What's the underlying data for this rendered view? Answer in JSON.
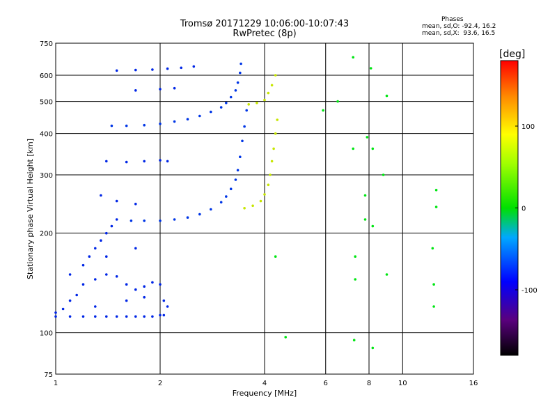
{
  "header": {
    "title": "Tromsø 20171229 10:06:00-10:07:43",
    "subtitle": "RwPretec (8p)"
  },
  "phases": {
    "label": "Phases",
    "line1": "mean, sd,O: -92.4, 16.2",
    "line2": "mean, sd,X:  93.6, 16.5"
  },
  "colorbar": {
    "label": "[deg]",
    "ticks": [
      {
        "value": 100,
        "label": "100"
      },
      {
        "value": 0,
        "label": "0"
      },
      {
        "value": -100,
        "label": "-100"
      }
    ],
    "range": [
      -180,
      180
    ]
  },
  "chart_data": {
    "type": "scatter",
    "title": "",
    "xlabel": "Frequency [MHz]",
    "ylabel": "Stationary phase Virtual Height [km]",
    "xscale": "log",
    "yscale": "log",
    "xlim": [
      1,
      16
    ],
    "ylim": [
      75,
      750
    ],
    "xticks": [
      1,
      2,
      4,
      6,
      8,
      10,
      16
    ],
    "xtick_labels": [
      "1",
      "2",
      "4",
      "6",
      "8",
      "10",
      "16"
    ],
    "yticks": [
      75,
      100,
      200,
      300,
      400,
      500,
      600,
      750
    ],
    "ytick_labels": [
      "75",
      "100",
      "200",
      "300",
      "400",
      "500",
      "600",
      "750"
    ],
    "grid": true,
    "color_quantity": "phase [deg]",
    "traces": [
      {
        "kind": "low-ionogram scatter",
        "phase_deg": -100,
        "points": [
          [
            1.0,
            115
          ],
          [
            1.05,
            118
          ],
          [
            1.1,
            125
          ],
          [
            1.15,
            130
          ],
          [
            1.2,
            140
          ],
          [
            1.3,
            145
          ],
          [
            1.4,
            150
          ],
          [
            1.5,
            148
          ],
          [
            1.6,
            140
          ],
          [
            1.7,
            135
          ],
          [
            1.8,
            138
          ],
          [
            1.9,
            142
          ],
          [
            2.0,
            140
          ],
          [
            2.05,
            125
          ],
          [
            1.2,
            160
          ],
          [
            1.25,
            170
          ],
          [
            1.3,
            180
          ],
          [
            1.35,
            190
          ],
          [
            1.4,
            200
          ],
          [
            1.45,
            210
          ],
          [
            1.5,
            220
          ],
          [
            1.3,
            120
          ],
          [
            1.6,
            125
          ],
          [
            1.8,
            128
          ],
          [
            2.1,
            120
          ],
          [
            1.1,
            150
          ],
          [
            1.4,
            170
          ],
          [
            1.7,
            180
          ]
        ]
      },
      {
        "kind": "E trace",
        "phase_deg": -100,
        "points": [
          [
            1.0,
            112
          ],
          [
            1.1,
            112
          ],
          [
            1.2,
            112
          ],
          [
            1.3,
            112
          ],
          [
            1.4,
            112
          ],
          [
            1.5,
            112
          ],
          [
            1.6,
            112
          ],
          [
            1.7,
            112
          ],
          [
            1.8,
            112
          ],
          [
            1.9,
            112
          ],
          [
            2.0,
            113
          ],
          [
            2.05,
            113
          ]
        ]
      },
      {
        "kind": "F1 O-mode",
        "phase_deg": -95,
        "points": [
          [
            1.65,
            218
          ],
          [
            1.8,
            218
          ],
          [
            2.0,
            218
          ],
          [
            2.2,
            220
          ],
          [
            2.4,
            223
          ],
          [
            2.6,
            228
          ],
          [
            2.8,
            236
          ],
          [
            3.0,
            248
          ],
          [
            3.1,
            258
          ],
          [
            3.2,
            272
          ],
          [
            3.3,
            290
          ],
          [
            3.35,
            310
          ],
          [
            3.4,
            340
          ],
          [
            3.45,
            380
          ],
          [
            3.5,
            420
          ],
          [
            3.55,
            470
          ]
        ]
      },
      {
        "kind": "F2 O-mode",
        "phase_deg": -95,
        "points": [
          [
            1.45,
            422
          ],
          [
            1.6,
            422
          ],
          [
            1.8,
            424
          ],
          [
            2.0,
            428
          ],
          [
            2.2,
            435
          ],
          [
            2.4,
            442
          ],
          [
            2.6,
            452
          ],
          [
            2.8,
            465
          ],
          [
            3.0,
            480
          ],
          [
            3.1,
            495
          ],
          [
            3.2,
            515
          ],
          [
            3.3,
            540
          ],
          [
            3.35,
            570
          ],
          [
            3.4,
            610
          ],
          [
            3.42,
            650
          ]
        ]
      },
      {
        "kind": "F trace X-mode",
        "phase_deg": 85,
        "points": [
          [
            3.5,
            238
          ],
          [
            3.7,
            242
          ],
          [
            3.9,
            250
          ],
          [
            4.0,
            262
          ],
          [
            4.1,
            280
          ],
          [
            4.15,
            300
          ],
          [
            4.2,
            330
          ],
          [
            4.25,
            360
          ],
          [
            4.3,
            400
          ],
          [
            4.35,
            440
          ],
          [
            3.6,
            490
          ],
          [
            3.8,
            495
          ],
          [
            4.0,
            505
          ],
          [
            4.1,
            530
          ],
          [
            4.2,
            560
          ],
          [
            4.3,
            600
          ]
        ]
      },
      {
        "kind": "second-hop band",
        "phase_deg": -100,
        "points": [
          [
            1.4,
            330
          ],
          [
            1.6,
            328
          ],
          [
            1.8,
            330
          ],
          [
            2.0,
            332
          ],
          [
            2.1,
            330
          ],
          [
            1.5,
            620
          ],
          [
            1.7,
            622
          ],
          [
            1.9,
            624
          ],
          [
            2.1,
            628
          ],
          [
            2.3,
            632
          ],
          [
            2.5,
            638
          ],
          [
            1.7,
            540
          ],
          [
            2.0,
            545
          ],
          [
            2.2,
            548
          ],
          [
            1.35,
            260
          ],
          [
            1.5,
            250
          ],
          [
            1.7,
            245
          ]
        ]
      },
      {
        "kind": "scattered noise",
        "phase_deg": 20,
        "points": [
          [
            4.3,
            170
          ],
          [
            4.6,
            97
          ],
          [
            5.9,
            470
          ],
          [
            6.5,
            500
          ],
          [
            7.2,
            680
          ],
          [
            7.2,
            360
          ],
          [
            7.3,
            170
          ],
          [
            7.3,
            145
          ],
          [
            7.25,
            95
          ],
          [
            7.8,
            220
          ],
          [
            7.8,
            260
          ],
          [
            7.9,
            390
          ],
          [
            8.1,
            630
          ],
          [
            8.2,
            360
          ],
          [
            8.2,
            210
          ],
          [
            8.2,
            90
          ],
          [
            8.8,
            300
          ],
          [
            9.0,
            520
          ],
          [
            9.0,
            150
          ],
          [
            12.2,
            180
          ],
          [
            12.3,
            140
          ],
          [
            12.3,
            120
          ],
          [
            12.5,
            270
          ],
          [
            12.5,
            240
          ]
        ]
      }
    ]
  }
}
